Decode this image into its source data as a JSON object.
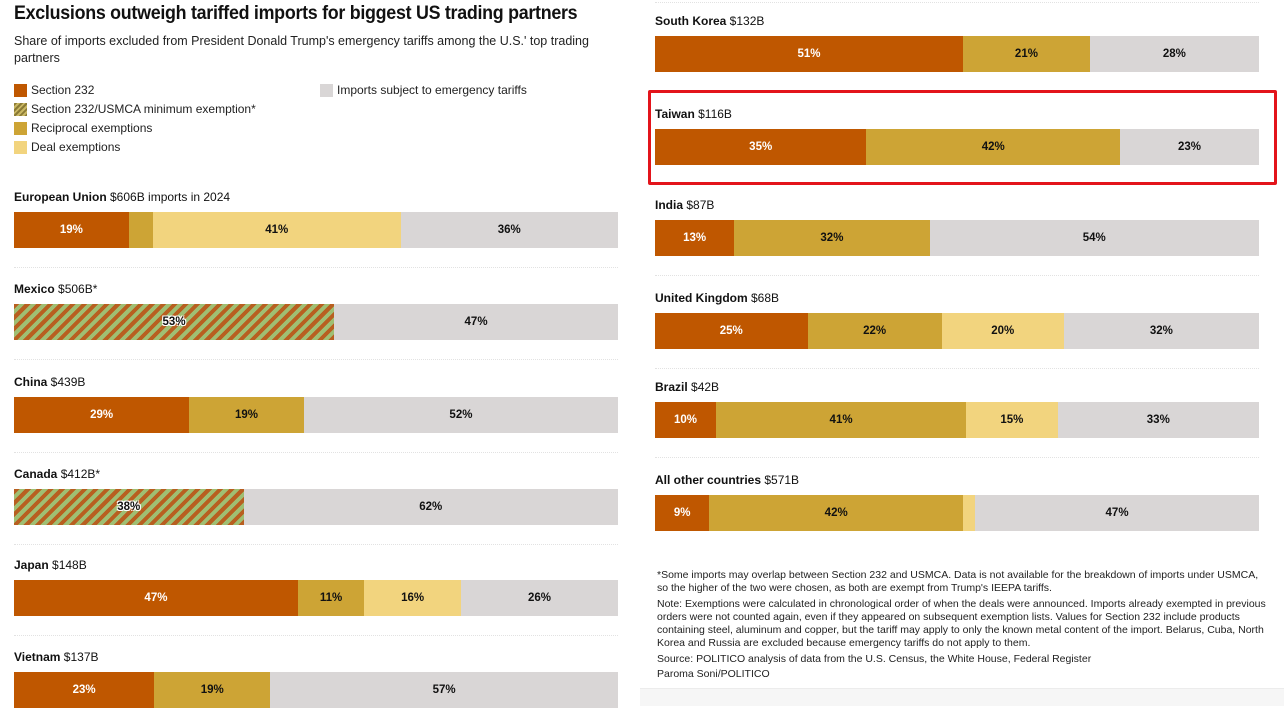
{
  "header": {
    "title": "Exclusions outweigh tariffed imports for biggest US trading partners",
    "subtitle": "Share of imports excluded from President Donald Trump's emergency tariffs among the U.S.' top trading partners"
  },
  "legend": [
    {
      "key": "s232",
      "label": "Section 232",
      "color": "#bf5700"
    },
    {
      "key": "usmca",
      "label": "Section 232/USMCA minimum exemption*",
      "color": "hatch"
    },
    {
      "key": "recip",
      "label": "Reciprocal exemptions",
      "color": "#cda435"
    },
    {
      "key": "deal",
      "label": "Deal exemptions",
      "color": "#f2d47e"
    },
    {
      "key": "tariff",
      "label": "Imports subject to emergency tariffs",
      "color": "#d9d6d6"
    }
  ],
  "colors": {
    "s232": "#bf5700",
    "recip": "#cda435",
    "deal": "#f2d47e",
    "tariff": "#d9d6d6",
    "hatch_a": "#b85f20",
    "hatch_b": "#9fbf73",
    "highlight_box": "#e3141b"
  },
  "chart_data": {
    "type": "bar",
    "orientation": "horizontal-stacked-100",
    "title": "Exclusions outweigh tariffed imports for biggest US trading partners",
    "subtitle": "Share of imports excluded from President Donald Trump's emergency tariffs among the U.S.' top trading partners",
    "xlabel": "",
    "ylabel": "",
    "xlim": [
      0,
      100
    ],
    "unit": "%",
    "series_order": [
      "Section 232",
      "Section 232/USMCA minimum exemption*",
      "Reciprocal exemptions",
      "Deal exemptions",
      "Imports subject to emergency tariffs"
    ],
    "categories": [
      "European Union",
      "Mexico",
      "China",
      "Canada",
      "Japan",
      "Vietnam",
      "South Korea",
      "Taiwan",
      "India",
      "United Kingdom",
      "Brazil",
      "All other countries"
    ],
    "rows": [
      {
        "name": "European Union",
        "value_label": "$606B imports in 2024",
        "segments": [
          {
            "key": "s232",
            "value": 19,
            "label": "19%"
          },
          {
            "key": "recip",
            "value": 4,
            "label": ""
          },
          {
            "key": "deal",
            "value": 41,
            "label": "41%"
          },
          {
            "key": "tariff",
            "value": 36,
            "label": "36%"
          }
        ]
      },
      {
        "name": "Mexico",
        "value_label": "$506B*",
        "segments": [
          {
            "key": "usmca",
            "value": 53,
            "label": "53%"
          },
          {
            "key": "tariff",
            "value": 47,
            "label": "47%"
          }
        ]
      },
      {
        "name": "China",
        "value_label": "$439B",
        "segments": [
          {
            "key": "s232",
            "value": 29,
            "label": "29%"
          },
          {
            "key": "recip",
            "value": 19,
            "label": "19%"
          },
          {
            "key": "tariff",
            "value": 52,
            "label": "52%"
          }
        ]
      },
      {
        "name": "Canada",
        "value_label": "$412B*",
        "segments": [
          {
            "key": "usmca",
            "value": 38,
            "label": "38%"
          },
          {
            "key": "tariff",
            "value": 62,
            "label": "62%"
          }
        ]
      },
      {
        "name": "Japan",
        "value_label": "$148B",
        "segments": [
          {
            "key": "s232",
            "value": 47,
            "label": "47%"
          },
          {
            "key": "recip",
            "value": 11,
            "label": "11%"
          },
          {
            "key": "deal",
            "value": 16,
            "label": "16%"
          },
          {
            "key": "tariff",
            "value": 26,
            "label": "26%"
          }
        ]
      },
      {
        "name": "Vietnam",
        "value_label": "$137B",
        "segments": [
          {
            "key": "s232",
            "value": 23,
            "label": "23%"
          },
          {
            "key": "recip",
            "value": 19,
            "label": "19%"
          },
          {
            "key": "tariff",
            "value": 57,
            "label": "57%"
          }
        ]
      },
      {
        "name": "South Korea",
        "value_label": "$132B",
        "segments": [
          {
            "key": "s232",
            "value": 51,
            "label": "51%"
          },
          {
            "key": "recip",
            "value": 21,
            "label": "21%"
          },
          {
            "key": "tariff",
            "value": 28,
            "label": "28%"
          }
        ]
      },
      {
        "name": "Taiwan",
        "value_label": "$116B",
        "highlighted": true,
        "segments": [
          {
            "key": "s232",
            "value": 35,
            "label": "35%"
          },
          {
            "key": "recip",
            "value": 42,
            "label": "42%"
          },
          {
            "key": "tariff",
            "value": 23,
            "label": "23%"
          }
        ]
      },
      {
        "name": "India",
        "value_label": "$87B",
        "segments": [
          {
            "key": "s232",
            "value": 13,
            "label": "13%"
          },
          {
            "key": "recip",
            "value": 32,
            "label": "32%"
          },
          {
            "key": "tariff",
            "value": 54,
            "label": "54%"
          }
        ]
      },
      {
        "name": "United Kingdom",
        "value_label": "$68B",
        "segments": [
          {
            "key": "s232",
            "value": 25,
            "label": "25%"
          },
          {
            "key": "recip",
            "value": 22,
            "label": "22%"
          },
          {
            "key": "deal",
            "value": 20,
            "label": "20%"
          },
          {
            "key": "tariff",
            "value": 32,
            "label": "32%"
          }
        ]
      },
      {
        "name": "Brazil",
        "value_label": "$42B",
        "segments": [
          {
            "key": "s232",
            "value": 10,
            "label": "10%"
          },
          {
            "key": "recip",
            "value": 41,
            "label": "41%"
          },
          {
            "key": "deal",
            "value": 15,
            "label": "15%"
          },
          {
            "key": "tariff",
            "value": 33,
            "label": "33%"
          }
        ]
      },
      {
        "name": "All other countries",
        "value_label": "$571B",
        "segments": [
          {
            "key": "s232",
            "value": 9,
            "label": "9%"
          },
          {
            "key": "recip",
            "value": 42,
            "label": "42%"
          },
          {
            "key": "deal",
            "value": 2,
            "label": ""
          },
          {
            "key": "tariff",
            "value": 47,
            "label": "47%"
          }
        ]
      }
    ]
  },
  "notes": {
    "footnote": "*Some imports may overlap between Section 232 and USMCA. Data is not available for the breakdown of imports under USMCA, so the higher of the two were chosen, as both are exempt from Trump's IEEPA tariffs.",
    "note": "Note: Exemptions were calculated in chronological order of when the deals were announced. Imports already exempted in previous orders were not counted again, even if they appeared on subsequent exemption lists. Values for Section 232 include products containing steel, aluminum and copper, but the tariff may apply to only the known metal content of the import. Belarus, Cuba, North Korea and Russia are excluded because emergency tariffs do not apply to them.",
    "source": "Source: POLITICO analysis of data from the U.S. Census, the White House, Federal Register",
    "credit": "Paroma Soni/POLITICO"
  }
}
